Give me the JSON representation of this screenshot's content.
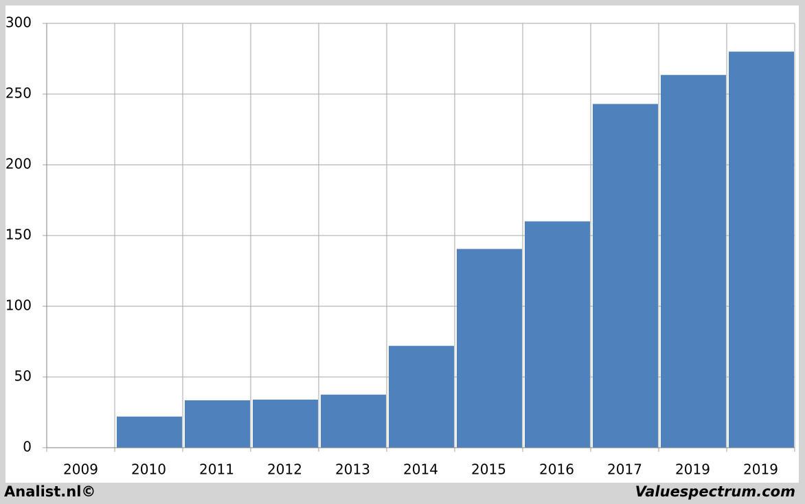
{
  "chart_data": {
    "type": "bar",
    "categories": [
      "2009",
      "2010",
      "2011",
      "2012",
      "2013",
      "2014",
      "2015",
      "2016",
      "2017",
      "2019",
      "2019"
    ],
    "values": [
      null,
      22,
      33.5,
      34,
      37.5,
      72,
      140.5,
      160,
      243,
      263.5,
      280
    ],
    "color": "#4f81bd",
    "ylim": [
      0,
      300
    ],
    "yticks": [
      0,
      50,
      100,
      150,
      200,
      250,
      300
    ],
    "grid": true
  },
  "footer": {
    "left": "Analist.nl©",
    "right": "Valuespectrum.com"
  }
}
